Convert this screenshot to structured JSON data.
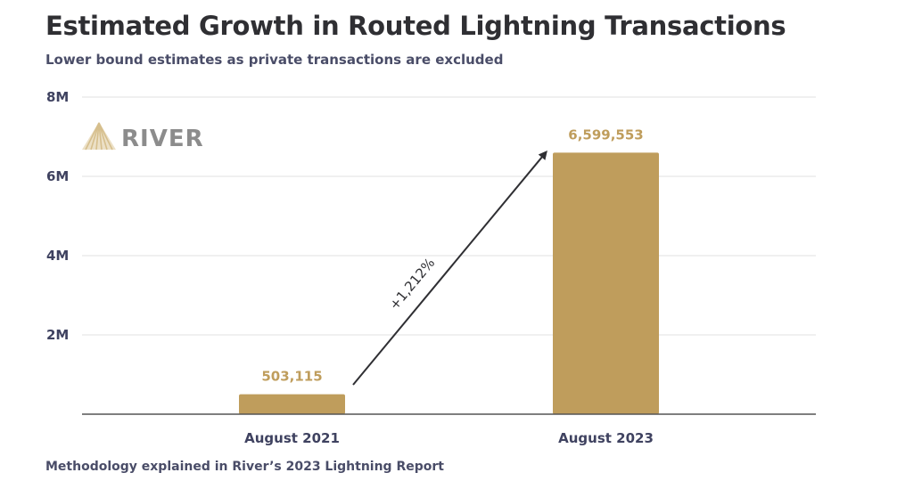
{
  "header": {
    "title": "Estimated Growth in Routed Lightning Transactions",
    "subtitle": "Lower bound estimates as private transactions are excluded"
  },
  "footer": {
    "note": "Methodology explained in River’s 2023 Lightning Report"
  },
  "logo": {
    "text": "RIVER",
    "icon": "river-logo-icon"
  },
  "colors": {
    "bar": "#bf9d5c",
    "data_label": "#bf9d5c",
    "axis_text": "#3f4260",
    "grid": "#e6e6e6",
    "baseline": "#555555",
    "arrow": "#2f2f33"
  },
  "chart_data": {
    "type": "bar",
    "title": "Estimated Growth in Routed Lightning Transactions",
    "subtitle": "Lower bound estimates as private transactions are excluded",
    "categories": [
      "August 2021",
      "August 2023"
    ],
    "values": [
      503115,
      6599553
    ],
    "data_labels": [
      "503,115",
      "6,599,553"
    ],
    "xlabel": "",
    "ylabel": "",
    "ylim": [
      0,
      8000000
    ],
    "yticks": [
      2000000,
      4000000,
      6000000,
      8000000
    ],
    "ytick_labels": [
      "2M",
      "4M",
      "6M",
      "8M"
    ],
    "grid": true,
    "legend": "none",
    "annotations": [
      {
        "type": "arrow",
        "from_category": "August 2021",
        "to_category": "August 2023",
        "text": "+1,212%"
      }
    ]
  }
}
